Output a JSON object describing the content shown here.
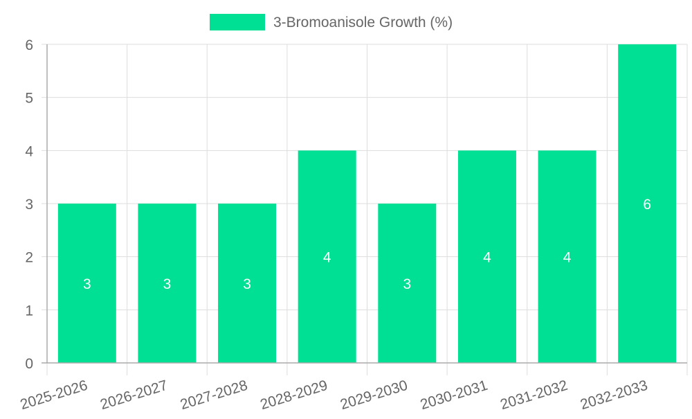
{
  "chart_data": {
    "type": "bar",
    "title": "",
    "categories": [
      "2025-2026",
      "2026-2027",
      "2027-2028",
      "2028-2029",
      "2029-2030",
      "2030-2031",
      "2031-2032",
      "2032-2033"
    ],
    "series": [
      {
        "name": "3-Bromoanisole Growth (%)",
        "values": [
          3,
          3,
          3,
          4,
          3,
          4,
          4,
          6
        ],
        "color": "#00e095"
      }
    ],
    "y_ticks": [
      "0",
      "1",
      "2",
      "3",
      "4",
      "5",
      "6"
    ],
    "ylim": [
      0,
      6
    ],
    "xlabel": "",
    "ylabel": "",
    "grid": true,
    "legend_position": "top-center",
    "data_labels": [
      "3",
      "3",
      "3",
      "4",
      "3",
      "4",
      "4",
      "6"
    ]
  },
  "colors": {
    "bar": "#00e095",
    "grid": "#dddddd",
    "axis": "#aaaaaa",
    "tick_text": "#666666",
    "data_label": "#ffffff"
  }
}
